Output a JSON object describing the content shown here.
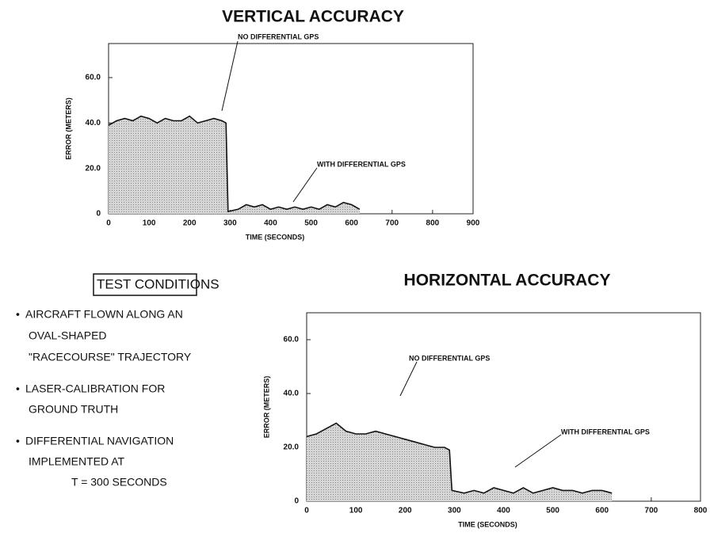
{
  "chart_data": [
    {
      "type": "area",
      "title": "VERTICAL ACCURACY",
      "x_label": "TIME (SECONDS)",
      "y_label": "ERROR (METERS)",
      "x": [
        0,
        20,
        40,
        60,
        80,
        100,
        120,
        140,
        160,
        180,
        200,
        220,
        240,
        260,
        280,
        290,
        295,
        320,
        340,
        360,
        380,
        400,
        420,
        440,
        460,
        480,
        500,
        520,
        540,
        560,
        580,
        600,
        620
      ],
      "series": [
        {
          "name": "ERROR",
          "color": "#111111",
          "values": [
            39,
            41,
            42,
            41,
            43,
            42,
            40,
            42,
            41,
            41,
            43,
            40,
            41,
            42,
            41,
            40,
            1,
            2,
            4,
            3,
            4,
            2,
            3,
            2,
            3,
            2,
            3,
            2,
            4,
            3,
            5,
            4,
            2
          ]
        }
      ],
      "xlim": [
        0,
        900
      ],
      "xticks": [
        0,
        100,
        200,
        300,
        400,
        500,
        600,
        700,
        800,
        900
      ],
      "ylim": [
        0,
        75
      ],
      "yticks": [
        {
          "value": 0,
          "label": "0"
        },
        {
          "value": 20,
          "label": "20.0"
        },
        {
          "value": 40,
          "label": "40.0"
        },
        {
          "value": 60,
          "label": "60.0"
        }
      ],
      "annotations": [
        "NO DIFFERENTIAL GPS",
        "WITH DIFFERENTIAL GPS"
      ]
    },
    {
      "type": "area",
      "title": "HORIZONTAL ACCURACY",
      "x_label": "TIME (SECONDS)",
      "y_label": "ERROR (METERS)",
      "x": [
        0,
        20,
        40,
        60,
        80,
        100,
        120,
        140,
        160,
        180,
        200,
        220,
        240,
        260,
        280,
        290,
        295,
        320,
        340,
        360,
        380,
        400,
        420,
        440,
        460,
        480,
        500,
        520,
        540,
        560,
        580,
        600,
        620
      ],
      "series": [
        {
          "name": "ERROR",
          "color": "#111111",
          "values": [
            24,
            25,
            27,
            29,
            26,
            25,
            25,
            26,
            25,
            24,
            23,
            22,
            21,
            20,
            20,
            19,
            4,
            3,
            4,
            3,
            5,
            4,
            3,
            5,
            3,
            4,
            5,
            4,
            4,
            3,
            4,
            4,
            3
          ]
        }
      ],
      "xlim": [
        0,
        800
      ],
      "xticks": [
        0,
        100,
        200,
        300,
        400,
        500,
        600,
        700,
        800
      ],
      "ylim": [
        0,
        70
      ],
      "yticks": [
        {
          "value": 0,
          "label": "0"
        },
        {
          "value": 20,
          "label": "20.0"
        },
        {
          "value": 40,
          "label": "40.0"
        },
        {
          "value": 60,
          "label": "60.0"
        }
      ],
      "annotations": [
        "NO DIFFERENTIAL GPS",
        "WITH DIFFERENTIAL GPS"
      ]
    }
  ],
  "test_conditions": {
    "title": "TEST CONDITIONS",
    "items": [
      [
        "AIRCRAFT FLOWN ALONG AN",
        "OVAL-SHAPED",
        "\"RACECOURSE\" TRAJECTORY"
      ],
      [
        "LASER-CALIBRATION FOR",
        "GROUND TRUTH"
      ],
      [
        "DIFFERENTIAL NAVIGATION",
        "IMPLEMENTED AT",
        "T = 300 SECONDS"
      ]
    ]
  }
}
